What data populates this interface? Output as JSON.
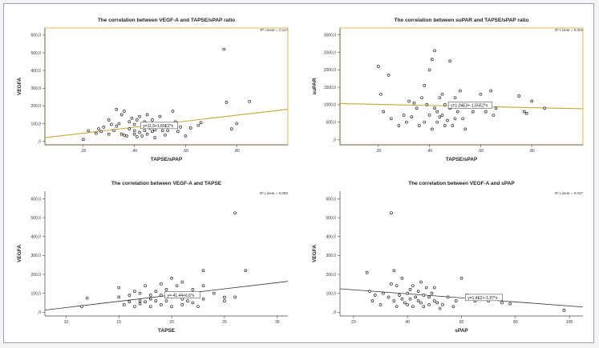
{
  "chart_data": [
    {
      "type": "scatter",
      "title": "The correlation between VEGF-A and TAPSE/sPAP ratio",
      "xlabel": "TAPSE/sPAP",
      "ylabel": "VEGFA",
      "xlim": [
        0.05,
        1.0
      ],
      "ylim": [
        -20,
        640
      ],
      "xticks": [
        0.2,
        0.4,
        0.6,
        0.8
      ],
      "xtick_labels": [
        ",20",
        ",40",
        ",60",
        ",80"
      ],
      "yticks": [
        0,
        100,
        200,
        300,
        400,
        500,
        600
      ],
      "ytick_labels": [
        ",0",
        "100,0",
        "200,0",
        "300,0",
        "400,0",
        "500,0",
        "600,0"
      ],
      "r2": "R² Linear = 0,117",
      "equation": "y=11,9+1,69E2*x",
      "fit_line": {
        "intercept": 11.9,
        "slope": 169
      },
      "label_at_x": 0.43,
      "highlight": "#e8c86a",
      "x": [
        0.2,
        0.22,
        0.25,
        0.26,
        0.27,
        0.28,
        0.3,
        0.3,
        0.31,
        0.32,
        0.33,
        0.33,
        0.34,
        0.35,
        0.35,
        0.36,
        0.36,
        0.37,
        0.38,
        0.38,
        0.39,
        0.4,
        0.4,
        0.4,
        0.41,
        0.41,
        0.42,
        0.42,
        0.43,
        0.43,
        0.44,
        0.44,
        0.45,
        0.45,
        0.46,
        0.46,
        0.47,
        0.47,
        0.48,
        0.48,
        0.49,
        0.5,
        0.5,
        0.51,
        0.52,
        0.53,
        0.55,
        0.56,
        0.57,
        0.58,
        0.6,
        0.62,
        0.65,
        0.66,
        0.75,
        0.76,
        0.78,
        0.8,
        0.85
      ],
      "y": [
        10,
        60,
        45,
        70,
        55,
        80,
        40,
        120,
        95,
        60,
        180,
        85,
        100,
        40,
        150,
        170,
        35,
        30,
        110,
        70,
        130,
        40,
        60,
        95,
        25,
        120,
        50,
        140,
        80,
        30,
        110,
        60,
        150,
        40,
        90,
        75,
        120,
        55,
        65,
        20,
        100,
        80,
        140,
        60,
        35,
        60,
        170,
        110,
        55,
        80,
        30,
        75,
        90,
        105,
        520,
        220,
        70,
        100,
        225
      ]
    },
    {
      "type": "scatter",
      "title": "The correlation between suPAR and TAPSE/sPAP ratio",
      "xlabel": "TAPSE/sPAP",
      "ylabel": "suPAR",
      "xlim": [
        0.05,
        1.0
      ],
      "ylim": [
        -150,
        3200
      ],
      "xticks": [
        0.2,
        0.4,
        0.6,
        0.8
      ],
      "xtick_labels": [
        ",20",
        ",40",
        ",60",
        ",80"
      ],
      "yticks": [
        0,
        500,
        1000,
        1500,
        2000,
        2500,
        3000
      ],
      "ytick_labels": [
        ",0",
        "500,0",
        "1000,0",
        "1500,0",
        "2000,0",
        "2500,0",
        "3000,0"
      ],
      "r2": "R² Linear = 0,002",
      "equation": "y=1,04E3+-1,55E2*x",
      "fit_line": {
        "intercept": 1040,
        "slope": -155
      },
      "label_at_x": 0.48,
      "highlight": "#e8c86a",
      "x": [
        0.2,
        0.21,
        0.22,
        0.24,
        0.25,
        0.28,
        0.3,
        0.31,
        0.32,
        0.33,
        0.34,
        0.35,
        0.36,
        0.37,
        0.38,
        0.38,
        0.39,
        0.4,
        0.4,
        0.41,
        0.41,
        0.42,
        0.42,
        0.43,
        0.43,
        0.44,
        0.44,
        0.45,
        0.45,
        0.46,
        0.46,
        0.47,
        0.48,
        0.48,
        0.49,
        0.5,
        0.5,
        0.51,
        0.52,
        0.53,
        0.54,
        0.55,
        0.57,
        0.6,
        0.62,
        0.64,
        0.65,
        0.66,
        0.75,
        0.77,
        0.78,
        0.8,
        0.85
      ],
      "y": [
        2100,
        1300,
        800,
        1850,
        600,
        400,
        700,
        500,
        1100,
        650,
        1050,
        900,
        400,
        1200,
        500,
        1550,
        1000,
        2000,
        700,
        2300,
        300,
        2550,
        900,
        800,
        500,
        1200,
        650,
        700,
        1300,
        400,
        1000,
        550,
        2250,
        900,
        400,
        1200,
        600,
        800,
        1400,
        600,
        300,
        950,
        800,
        1300,
        800,
        1400,
        700,
        900,
        1250,
        800,
        750,
        1100,
        900
      ]
    },
    {
      "type": "scatter",
      "title": "The correlation between VEGF-A and TAPSE",
      "xlabel": "TAPSE",
      "ylabel": "VEGFA",
      "xlim": [
        8,
        31
      ],
      "ylim": [
        -20,
        640
      ],
      "xticks": [
        10,
        15,
        20,
        25,
        30
      ],
      "xtick_labels": [
        "10",
        "15",
        "20",
        "25",
        "30"
      ],
      "yticks": [
        0,
        100,
        200,
        300,
        400,
        500,
        600
      ],
      "ytick_labels": [
        ",0",
        "100,0",
        "200,0",
        "300,0",
        "400,0",
        "500,0",
        "600,0"
      ],
      "r2": "R² Linear = 0,080",
      "equation": "y=-41,44+6,6*x",
      "fit_line": {
        "intercept": -41.44,
        "slope": 6.6
      },
      "label_at_x": 19.5,
      "highlight": "",
      "x": [
        11.5,
        12,
        15,
        15,
        15.5,
        16,
        16,
        16.5,
        16.5,
        17,
        17,
        17,
        17.5,
        17.5,
        18,
        18,
        18,
        18.5,
        18.5,
        19,
        19,
        19,
        19.5,
        19.5,
        20,
        20,
        20,
        20.5,
        20.5,
        21,
        21,
        21,
        21.5,
        21.5,
        22,
        22,
        22,
        22.5,
        23,
        23,
        23,
        24,
        25,
        25,
        26,
        26,
        27
      ],
      "y": [
        30,
        75,
        80,
        130,
        40,
        90,
        55,
        110,
        30,
        60,
        100,
        45,
        140,
        55,
        90,
        30,
        70,
        110,
        60,
        40,
        90,
        150,
        120,
        60,
        30,
        180,
        80,
        140,
        95,
        70,
        160,
        40,
        100,
        60,
        120,
        50,
        85,
        30,
        70,
        140,
        220,
        100,
        60,
        80,
        525,
        80,
        220
      ]
    },
    {
      "type": "scatter",
      "title": "The correlation between VEGF-A and sPAP",
      "xlabel": "sPAP",
      "ylabel": "VEGFA",
      "xlim": [
        15,
        105
      ],
      "ylim": [
        -20,
        640
      ],
      "xticks": [
        20,
        40,
        60,
        80,
        100
      ],
      "xtick_labels": [
        "20",
        "40",
        "60",
        "80",
        "100"
      ],
      "yticks": [
        0,
        100,
        200,
        300,
        400,
        500,
        600
      ],
      "ytick_labels": [
        ",0",
        "100,0",
        "200,0",
        "300,0",
        "400,0",
        "500,0",
        "600,0"
      ],
      "r2": "R² Linear = 0,037",
      "equation": "y=1,4E2+-1,07*x",
      "fit_line": {
        "intercept": 140,
        "slope": -1.07
      },
      "label_at_x": 62,
      "highlight": "",
      "x": [
        25,
        26,
        27,
        28,
        30,
        31,
        33,
        34,
        34,
        35,
        35,
        36,
        36,
        37,
        38,
        38,
        39,
        40,
        40,
        41,
        41,
        42,
        42,
        43,
        44,
        44,
        45,
        45,
        46,
        46,
        47,
        48,
        48,
        49,
        50,
        50,
        51,
        52,
        53,
        55,
        57,
        58,
        60,
        62,
        65,
        70,
        75,
        78,
        98
      ],
      "y": [
        210,
        110,
        60,
        90,
        40,
        100,
        80,
        150,
        525,
        60,
        220,
        140,
        30,
        90,
        70,
        180,
        50,
        100,
        40,
        120,
        70,
        140,
        30,
        80,
        60,
        110,
        160,
        50,
        90,
        30,
        130,
        80,
        40,
        100,
        60,
        130,
        50,
        20,
        40,
        80,
        30,
        60,
        180,
        90,
        60,
        60,
        50,
        45,
        10
      ]
    }
  ]
}
